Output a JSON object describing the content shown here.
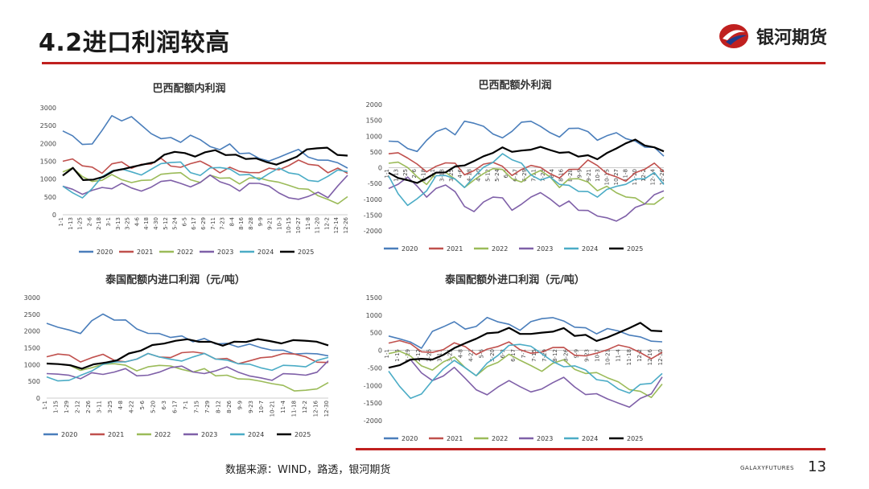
{
  "page": {
    "title": "4.2进口利润较高",
    "brand_name": "银河期货",
    "source": "数据来源：WIND，路透，银河期货",
    "footer_brand": "GALAXYFUTURES",
    "page_number": "13"
  },
  "colors": {
    "accent_red": "#c0201f",
    "brand_blue": "#1f3a8a",
    "s2020": "#4a7ebb",
    "s2021": "#c0504d",
    "s2022": "#9bbb59",
    "s2023": "#7f60a8",
    "s2024": "#4bacc6",
    "s2025": "#000000"
  },
  "legend": [
    "2020",
    "2021",
    "2022",
    "2023",
    "2024",
    "2025"
  ],
  "chart_data": [
    {
      "type": "line",
      "title": "巴西配额内利润",
      "ylim": [
        0,
        3000
      ],
      "yticks": [
        "3000",
        "2500",
        "2000",
        "1500",
        "1000",
        "500",
        "0"
      ],
      "x_ticks": [
        "1-1",
        "1-13",
        "1-25",
        "2-6",
        "2-18",
        "3-1",
        "3-13",
        "3-25",
        "4-6",
        "4-18",
        "4-30",
        "5-12",
        "5-24",
        "6-5",
        "6-17",
        "6-29",
        "7-11",
        "7-23",
        "8-4",
        "8-16",
        "8-28",
        "9-9",
        "9-21",
        "10-3",
        "10-15",
        "10-27",
        "11-8",
        "11-20",
        "12-2",
        "12-14",
        "12-26"
      ],
      "series": [
        {
          "name": "2020",
          "values": [
            2350,
            2200,
            2000,
            1950,
            2400,
            2750,
            2650,
            2750,
            2500,
            2300,
            2100,
            2200,
            2000,
            2250,
            2100,
            1900,
            1850,
            1950,
            1750,
            1700,
            1600,
            1500,
            1600,
            1750,
            1800,
            1650,
            1500,
            1550,
            1450,
            1300
          ]
        },
        {
          "name": "2021",
          "values": [
            1500,
            1550,
            1400,
            1300,
            1200,
            1400,
            1500,
            1300,
            1400,
            1450,
            1550,
            1400,
            1300,
            1450,
            1500,
            1350,
            1200,
            1300,
            1250,
            1150,
            1200,
            1300,
            1250,
            1400,
            1500,
            1450,
            1350,
            1200,
            1300,
            1150
          ]
        },
        {
          "name": "2022",
          "values": [
            1200,
            1300,
            1100,
            900,
            1000,
            1100,
            1000,
            900,
            950,
            1000,
            1100,
            1200,
            1150,
            1000,
            900,
            1100,
            1050,
            1000,
            900,
            1000,
            1050,
            950,
            900,
            850,
            700,
            750,
            500,
            450,
            300,
            500
          ]
        },
        {
          "name": "2023",
          "values": [
            800,
            700,
            600,
            650,
            800,
            700,
            900,
            750,
            650,
            800,
            900,
            1000,
            850,
            800,
            900,
            1100,
            950,
            800,
            700,
            850,
            900,
            800,
            600,
            500,
            400,
            550,
            600,
            500,
            800,
            1100
          ]
        },
        {
          "name": "2024",
          "values": [
            800,
            600,
            500,
            700,
            1100,
            1200,
            1300,
            1200,
            1100,
            1300,
            1400,
            1500,
            1450,
            1200,
            1100,
            1300,
            1350,
            1250,
            1150,
            1100,
            1000,
            1150,
            1300,
            1200,
            1100,
            1000,
            900,
            1100,
            1250,
            1200
          ]
        },
        {
          "name": "2025",
          "values": [
            1100,
            1300,
            1000,
            950,
            1100,
            1200,
            1300,
            1350,
            1400,
            1500,
            1650,
            1800,
            1700,
            1650,
            1750,
            1800,
            1700,
            1650,
            1600,
            1550,
            1500,
            1400,
            1500,
            1650,
            1800,
            1900,
            1850,
            1700,
            1650
          ]
        }
      ]
    },
    {
      "type": "line",
      "title": "巴西配额外利润",
      "ylim": [
        -2000,
        2000
      ],
      "yticks": [
        "2000",
        "1500",
        "1000",
        "500",
        "0",
        "-500",
        "-1000",
        "-1500",
        "-2000"
      ],
      "x_ticks": [
        "1-1",
        "1-13",
        "1-25",
        "2-6",
        "2-18",
        "3-1",
        "3-13",
        "3-25",
        "4-6",
        "4-18",
        "4-30",
        "5-12",
        "5-24",
        "6-5",
        "6-17",
        "6-29",
        "7-11",
        "7-23",
        "8-4",
        "8-16",
        "8-28",
        "9-9",
        "9-21",
        "10-3",
        "10-15",
        "10-27",
        "11-8",
        "11-20",
        "12-2",
        "12-14",
        "12-26"
      ],
      "series": [
        {
          "name": "2020",
          "values": [
            800,
            850,
            600,
            500,
            900,
            1100,
            1300,
            1000,
            1500,
            1400,
            1300,
            1100,
            900,
            1200,
            1400,
            1500,
            1300,
            1100,
            1000,
            1200,
            1300,
            1100,
            900,
            1000,
            1100,
            950,
            800,
            700,
            600,
            400
          ]
        },
        {
          "name": "2021",
          "values": [
            400,
            500,
            300,
            100,
            -100,
            0,
            200,
            100,
            -200,
            -100,
            100,
            200,
            0,
            -200,
            -100,
            100,
            0,
            -200,
            -300,
            -100,
            0,
            200,
            100,
            -200,
            -300,
            -400,
            -200,
            0,
            100,
            -100
          ]
        },
        {
          "name": "2022",
          "values": [
            100,
            200,
            0,
            -300,
            -500,
            -200,
            -100,
            -400,
            -600,
            -400,
            -200,
            0,
            -100,
            -300,
            -500,
            -200,
            -100,
            -300,
            -600,
            -400,
            -300,
            -500,
            -700,
            -600,
            -800,
            -900,
            -1000,
            -1100,
            -1200,
            -900
          ]
        },
        {
          "name": "2023",
          "values": [
            -700,
            -500,
            -300,
            -600,
            -900,
            -700,
            -500,
            -800,
            -1200,
            -1400,
            -1100,
            -900,
            -1000,
            -1300,
            -1200,
            -900,
            -800,
            -1000,
            -1200,
            -1100,
            -1300,
            -1400,
            -1500,
            -1600,
            -1700,
            -1500,
            -1300,
            -1100,
            -900,
            -700
          ]
        },
        {
          "name": "2024",
          "values": [
            -300,
            -800,
            -1200,
            -1000,
            -700,
            -300,
            -200,
            -400,
            -600,
            -300,
            0,
            200,
            400,
            300,
            100,
            -200,
            -400,
            -300,
            -500,
            -600,
            -700,
            -800,
            -900,
            -700,
            -600,
            -500,
            -400,
            -300,
            -200,
            -500
          ]
        },
        {
          "name": "2025",
          "values": [
            -200,
            -300,
            -400,
            -500,
            -300,
            -200,
            -100,
            0,
            100,
            200,
            350,
            500,
            600,
            550,
            500,
            600,
            650,
            550,
            500,
            450,
            400,
            350,
            300,
            450,
            600,
            800,
            850,
            750,
            600,
            550
          ]
        }
      ]
    },
    {
      "type": "line",
      "title": "泰国配额内进口利润（元/吨）",
      "ylim": [
        0,
        3000
      ],
      "yticks": [
        "3000",
        "2500",
        "2000",
        "1500",
        "1000",
        "500",
        "0"
      ],
      "x_ticks": [
        "1-1",
        "1-15",
        "1-29",
        "2-12",
        "2-26",
        "3-11",
        "3-25",
        "4-8",
        "4-22",
        "5-6",
        "5-20",
        "6-3",
        "6-17",
        "7-1",
        "7-15",
        "7-29",
        "8-12",
        "8-26",
        "9-9",
        "9-23",
        "10-7",
        "10-21",
        "11-4",
        "11-18",
        "12-2",
        "12-16",
        "12-30"
      ],
      "series": [
        {
          "name": "2020",
          "values": [
            2200,
            2150,
            2000,
            1950,
            2300,
            2500,
            2350,
            2300,
            2100,
            1900,
            1950,
            1800,
            1850,
            1700,
            1750,
            1650,
            1600,
            1550,
            1600,
            1500,
            1450,
            1400,
            1350,
            1300,
            1350,
            1250
          ]
        },
        {
          "name": "2021",
          "values": [
            1200,
            1350,
            1250,
            1100,
            1200,
            1300,
            1150,
            1050,
            1200,
            1300,
            1250,
            1200,
            1350,
            1400,
            1300,
            1200,
            1150,
            1050,
            1100,
            1200,
            1250,
            1300,
            1350,
            1200,
            1100,
            1050
          ]
        },
        {
          "name": "2022",
          "values": [
            1000,
            1050,
            950,
            850,
            900,
            1000,
            1050,
            950,
            850,
            900,
            1000,
            950,
            850,
            800,
            850,
            700,
            650,
            600,
            550,
            500,
            450,
            350,
            250,
            200,
            300,
            450
          ]
        },
        {
          "name": "2023",
          "values": [
            700,
            750,
            650,
            600,
            750,
            700,
            800,
            850,
            700,
            650,
            800,
            900,
            950,
            800,
            700,
            850,
            900,
            800,
            650,
            600,
            550,
            700,
            750,
            650,
            800,
            1100
          ]
        },
        {
          "name": "2024",
          "values": [
            600,
            550,
            500,
            700,
            800,
            1000,
            1100,
            1050,
            1200,
            1300,
            1250,
            1150,
            1100,
            1250,
            1300,
            1200,
            1100,
            1050,
            1000,
            900,
            850,
            950,
            1000,
            900,
            1150,
            1200
          ]
        },
        {
          "name": "2025",
          "values": [
            1000,
            1050,
            950,
            900,
            1000,
            1050,
            1150,
            1300,
            1450,
            1550,
            1650,
            1700,
            1750,
            1700,
            1650,
            1600,
            1650,
            1700,
            1750,
            1700,
            1650,
            1700,
            1750,
            1650,
            1600
          ]
        }
      ]
    },
    {
      "type": "line",
      "title": "泰国配额外进口利润（元/吨）",
      "ylim": [
        -2000,
        1500
      ],
      "yticks": [
        "1500",
        "1000",
        "500",
        "0",
        "-500",
        "-1000",
        "-1500",
        "-2000"
      ],
      "x_ticks": [
        "1-1",
        "1-15",
        "1-29",
        "2-12",
        "2-26",
        "3-11",
        "3-25",
        "4-8",
        "4-22",
        "5-6",
        "5-20",
        "6-3",
        "6-17",
        "7-1",
        "7-15",
        "7-29",
        "8-12",
        "8-26",
        "9-9",
        "9-23",
        "10-7",
        "10-21",
        "11-4",
        "11-18",
        "12-2",
        "12-16",
        "12-30"
      ],
      "series": [
        {
          "name": "2020",
          "values": [
            400,
            350,
            200,
            100,
            500,
            700,
            800,
            600,
            700,
            900,
            850,
            700,
            600,
            800,
            900,
            950,
            800,
            700,
            600,
            500,
            600,
            550,
            450,
            350,
            300,
            200
          ]
        },
        {
          "name": "2021",
          "values": [
            200,
            300,
            150,
            0,
            -100,
            50,
            200,
            100,
            -100,
            0,
            150,
            200,
            50,
            -100,
            -50,
            100,
            50,
            -100,
            -200,
            -50,
            0,
            150,
            100,
            -100,
            -200,
            -100
          ]
        },
        {
          "name": "2022",
          "values": [
            -100,
            0,
            -200,
            -400,
            -600,
            -300,
            -200,
            -500,
            -700,
            -500,
            -300,
            -150,
            -250,
            -450,
            -600,
            -350,
            -300,
            -500,
            -700,
            -600,
            -800,
            -900,
            -1100,
            -1200,
            -1300,
            -1000
          ]
        },
        {
          "name": "2023",
          "values": [
            -500,
            -400,
            -300,
            -600,
            -900,
            -700,
            -500,
            -800,
            -1100,
            -1300,
            -1000,
            -900,
            -1000,
            -1200,
            -1100,
            -900,
            -800,
            -1000,
            -1300,
            -1200,
            -1400,
            -1500,
            -1600,
            -1400,
            -1200,
            -800
          ]
        },
        {
          "name": "2024",
          "values": [
            -600,
            -1000,
            -1400,
            -1200,
            -900,
            -500,
            -300,
            -500,
            -700,
            -400,
            -100,
            100,
            200,
            100,
            -100,
            -300,
            -500,
            -400,
            -600,
            -800,
            -900,
            -1100,
            -1200,
            -1000,
            -900,
            -700
          ]
        },
        {
          "name": "2025",
          "values": [
            -500,
            -400,
            -300,
            -200,
            -300,
            -100,
            50,
            200,
            350,
            450,
            550,
            600,
            500,
            450,
            500,
            550,
            600,
            450,
            400,
            300,
            350,
            500,
            650,
            750,
            600,
            500
          ]
        }
      ]
    }
  ]
}
